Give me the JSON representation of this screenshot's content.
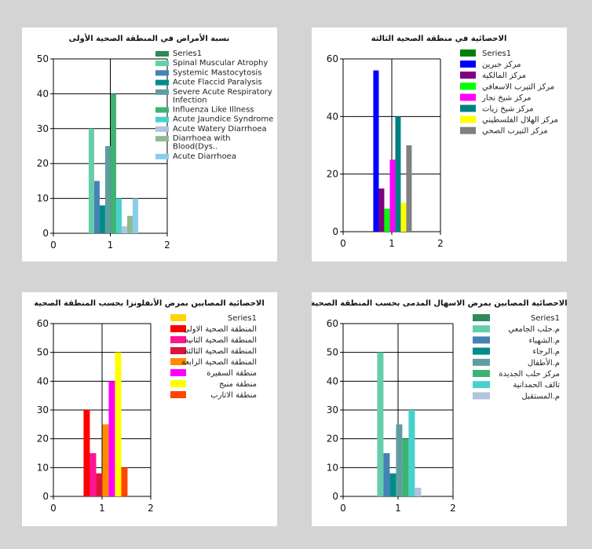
{
  "chart_data": [
    {
      "type": "bar",
      "title": "نسبة الأمراض في المنطقة الصحية الأولى",
      "xlabel": "",
      "ylabel": "",
      "xlim": [
        0,
        2
      ],
      "xticks": [
        "0",
        "1",
        "2"
      ],
      "ylim": [
        0,
        50
      ],
      "yticks": [
        "0",
        "10",
        "20",
        "30",
        "40",
        "50"
      ],
      "grid": true,
      "legend": "right",
      "categories": [
        "1"
      ],
      "series": [
        {
          "name": "Series1",
          "color": "#2e8b57",
          "values": [
            0
          ]
        },
        {
          "name": "Spinal Muscular Atrophy",
          "color": "#66cdaa",
          "values": [
            30
          ]
        },
        {
          "name": "Systemic Mastocytosis",
          "color": "#4682b4",
          "values": [
            15
          ]
        },
        {
          "name": "Acute Flaccid Paralysis",
          "color": "#008b8b",
          "values": [
            8
          ]
        },
        {
          "name": "Severe Acute Respiratory Infection",
          "color": "#5f9ea0",
          "values": [
            25
          ]
        },
        {
          "name": "Influenza Like Illness",
          "color": "#3cb371",
          "values": [
            40
          ]
        },
        {
          "name": "Acute Jaundice Syndrome",
          "color": "#48d1cc",
          "values": [
            10
          ]
        },
        {
          "name": "Acute Watery Diarrhoea",
          "color": "#b0c4de",
          "values": [
            2
          ]
        },
        {
          "name": "Diarrhoea  with  Blood(Dys..",
          "color": "#8fbc8f",
          "values": [
            5
          ]
        },
        {
          "name": "Acute Diarrhoea",
          "color": "#87ceeb",
          "values": [
            10
          ]
        }
      ]
    },
    {
      "type": "bar",
      "title": "الاحصائية في منطقة الصحية الثالثة",
      "xlabel": "",
      "ylabel": "",
      "xlim": [
        0,
        2
      ],
      "xticks": [
        "0",
        "1",
        "2"
      ],
      "ylim": [
        0,
        60
      ],
      "yticks": [
        "0",
        "20",
        "40",
        "60"
      ],
      "grid": true,
      "legend": "right",
      "categories": [
        "1"
      ],
      "series": [
        {
          "name": "Series1",
          "color": "#008000",
          "values": [
            0
          ]
        },
        {
          "name": "مركز جبرين",
          "color": "#0000ff",
          "values": [
            56
          ]
        },
        {
          "name": "مركز المالكية",
          "color": "#800080",
          "values": [
            15
          ]
        },
        {
          "name": "مركز التيرب الاسعافي",
          "color": "#00ff00",
          "values": [
            8
          ]
        },
        {
          "name": "مركز شيخ نجار",
          "color": "#ff00ff",
          "values": [
            25
          ]
        },
        {
          "name": "مركز شيخ زيات",
          "color": "#008080",
          "values": [
            40
          ]
        },
        {
          "name": "مركز الهلال الفلسطيني",
          "color": "#ffff00",
          "values": [
            10
          ]
        },
        {
          "name": "مركز التيرب الصحي",
          "color": "#808080",
          "values": [
            30
          ]
        }
      ]
    },
    {
      "type": "bar",
      "title": "الاحصائية المصابين بمرض الأنفلونزا بحسب المنطقة الصحية",
      "xlabel": "",
      "ylabel": "",
      "xlim": [
        0,
        2
      ],
      "xticks": [
        "0",
        "1",
        "2"
      ],
      "ylim": [
        0,
        60
      ],
      "yticks": [
        "0",
        "10",
        "20",
        "30",
        "40",
        "50",
        "60"
      ],
      "grid": true,
      "legend": "right",
      "categories": [
        "1"
      ],
      "series": [
        {
          "name": "Series1",
          "color": "#ffd700",
          "values": [
            0
          ]
        },
        {
          "name": "المنطقة الصحية الاولى",
          "color": "#ff0000",
          "values": [
            30
          ]
        },
        {
          "name": "المنطقة الصحية الثانية",
          "color": "#ff1493",
          "values": [
            15
          ]
        },
        {
          "name": "المنطقة الصحية الثالثة",
          "color": "#dc143c",
          "values": [
            8
          ]
        },
        {
          "name": "المنطقة الصحية الرابعة",
          "color": "#ff8c00",
          "values": [
            25
          ]
        },
        {
          "name": "منطقة السفيرة",
          "color": "#ff00ff",
          "values": [
            40
          ]
        },
        {
          "name": "منطقة منبج",
          "color": "#ffff00",
          "values": [
            50
          ]
        },
        {
          "name": "منطقة الاتارب",
          "color": "#ff4500",
          "values": [
            10
          ]
        }
      ]
    },
    {
      "type": "bar",
      "title": "الاحصائية المصابين بمرض الاسهال المدمى بحسب المنطقة الصحية",
      "xlabel": "",
      "ylabel": "",
      "xlim": [
        0,
        2
      ],
      "xticks": [
        "0",
        "1",
        "2"
      ],
      "ylim": [
        0,
        60
      ],
      "yticks": [
        "0",
        "10",
        "20",
        "30",
        "40",
        "50",
        "60"
      ],
      "grid": true,
      "legend": "right",
      "categories": [
        "1"
      ],
      "series": [
        {
          "name": "Series1",
          "color": "#2e8b57",
          "values": [
            0
          ]
        },
        {
          "name": "م.حلب الجامعي",
          "color": "#66cdaa",
          "values": [
            50
          ]
        },
        {
          "name": "م.الشهباء",
          "color": "#4682b4",
          "values": [
            15
          ]
        },
        {
          "name": "م.الرجاء",
          "color": "#008b8b",
          "values": [
            8
          ]
        },
        {
          "name": "م.الأطفال",
          "color": "#5f9ea0",
          "values": [
            25
          ]
        },
        {
          "name": "مركز حلب الجديدة",
          "color": "#3cb371",
          "values": [
            20
          ]
        },
        {
          "name": "تالف الحمدانية",
          "color": "#48d1cc",
          "values": [
            30
          ]
        },
        {
          "name": "م.المستقبل",
          "color": "#b0c4de",
          "values": [
            3
          ]
        }
      ]
    }
  ]
}
